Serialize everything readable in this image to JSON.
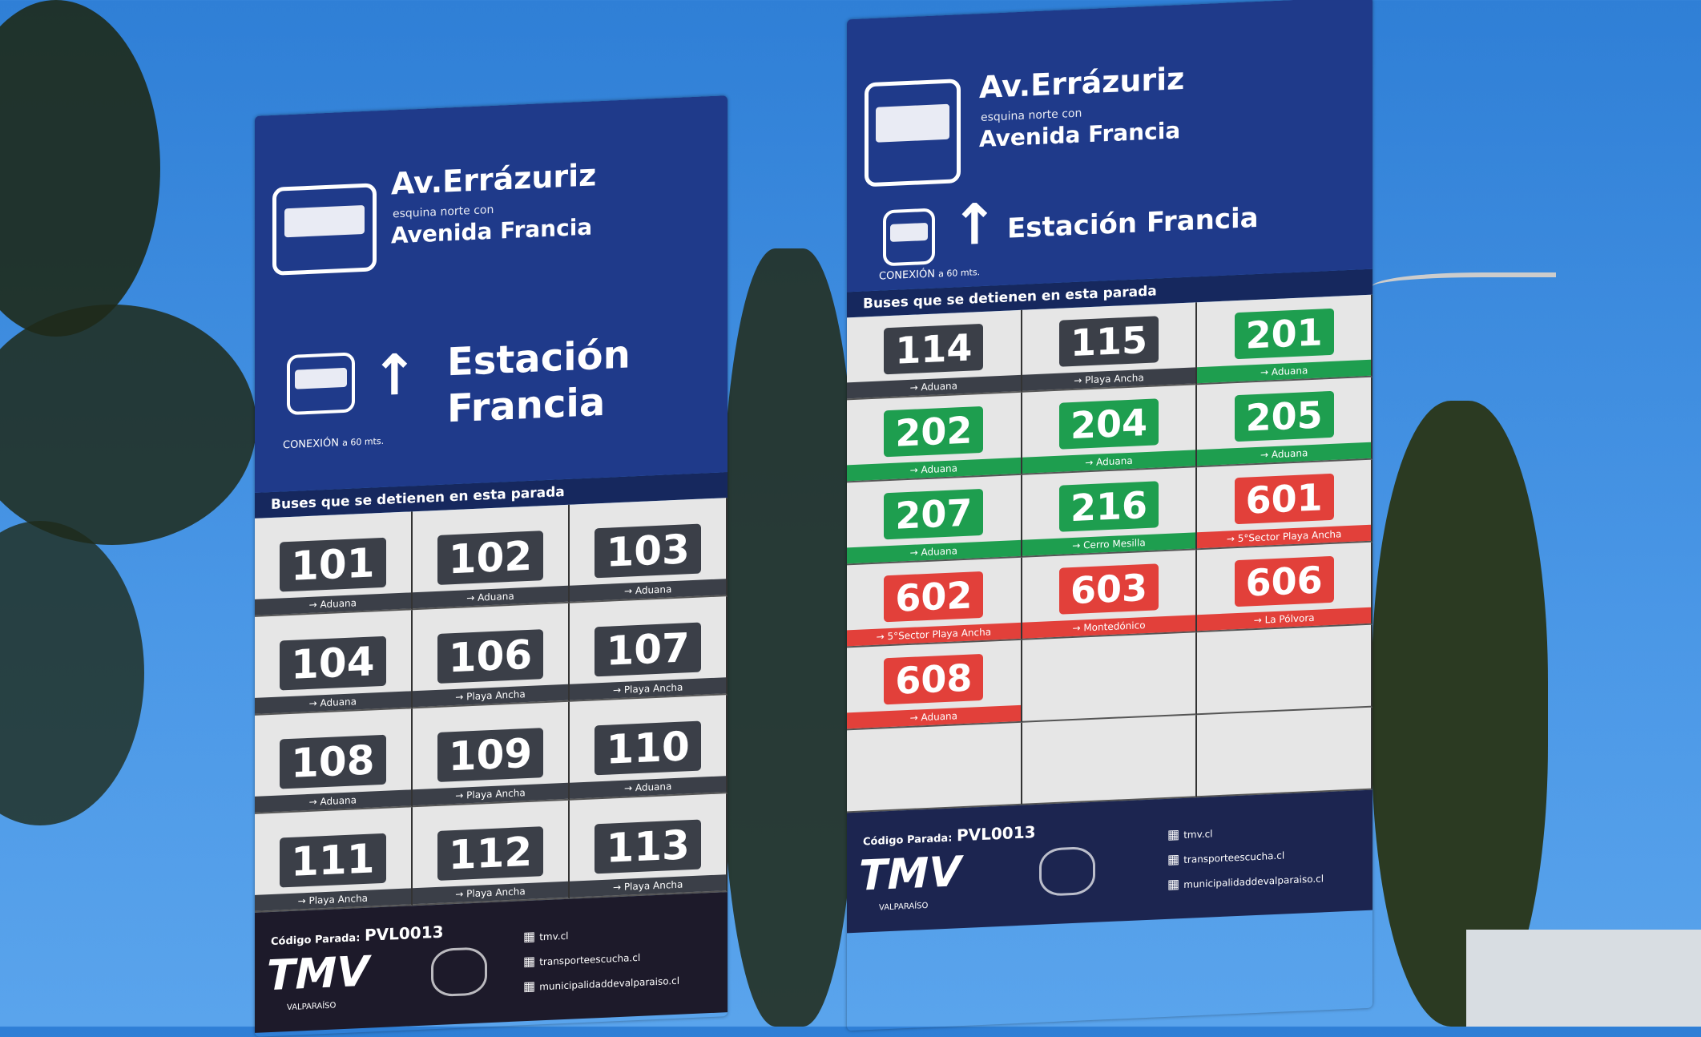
{
  "colors": {
    "sky": "#3b8ae0",
    "sign_blue": "#1f3a8a",
    "gray_route": "#3b3f48",
    "green_route": "#1e9e4f",
    "red_route": "#e2403a"
  },
  "signs": [
    {
      "title": "Av.Errázuriz",
      "subtitle": "esquina norte con",
      "street": "Avenida Francia",
      "connection_label": "CONEXIÓN",
      "distance": "a 60 mts.",
      "station": "Estación Francia",
      "bar_label": "Buses que se detienen en esta parada",
      "stop_code_label": "Código Parada:",
      "stop_code": "PVL0013",
      "logo": "TMV",
      "logo_sub": "VALPARAÍSO",
      "links": [
        "tmv.cl",
        "transporteescucha.cl",
        "municipalidaddevalparaiso.cl"
      ],
      "routes": [
        {
          "number": "101",
          "to": "Aduana",
          "color": "gray"
        },
        {
          "number": "102",
          "to": "Aduana",
          "color": "gray"
        },
        {
          "number": "103",
          "to": "Aduana",
          "color": "gray"
        },
        {
          "number": "104",
          "to": "Aduana",
          "color": "gray"
        },
        {
          "number": "106",
          "to": "Playa Ancha",
          "color": "gray"
        },
        {
          "number": "107",
          "to": "Playa Ancha",
          "color": "gray"
        },
        {
          "number": "108",
          "to": "Aduana",
          "color": "gray"
        },
        {
          "number": "109",
          "to": "Playa Ancha",
          "color": "gray"
        },
        {
          "number": "110",
          "to": "Aduana",
          "color": "gray"
        },
        {
          "number": "111",
          "to": "Playa Ancha",
          "color": "gray"
        },
        {
          "number": "112",
          "to": "Playa Ancha",
          "color": "gray"
        },
        {
          "number": "113",
          "to": "Playa Ancha",
          "color": "gray"
        }
      ]
    },
    {
      "title": "Av.Errázuriz",
      "subtitle": "esquina norte con",
      "street": "Avenida Francia",
      "connection_label": "CONEXIÓN",
      "distance": "a 60 mts.",
      "station": "Estación Francia",
      "bar_label": "Buses que se detienen en esta parada",
      "stop_code_label": "Código Parada:",
      "stop_code": "PVL0013",
      "logo": "TMV",
      "logo_sub": "VALPARAÍSO",
      "links": [
        "tmv.cl",
        "transporteescucha.cl",
        "municipalidaddevalparaiso.cl"
      ],
      "routes": [
        {
          "number": "114",
          "to": "Aduana",
          "color": "gray"
        },
        {
          "number": "115",
          "to": "Playa Ancha",
          "color": "gray"
        },
        {
          "number": "201",
          "to": "Aduana",
          "color": "green"
        },
        {
          "number": "202",
          "to": "Aduana",
          "color": "green"
        },
        {
          "number": "204",
          "to": "Aduana",
          "color": "green"
        },
        {
          "number": "205",
          "to": "Aduana",
          "color": "green"
        },
        {
          "number": "207",
          "to": "Aduana",
          "color": "green"
        },
        {
          "number": "216",
          "to": "Cerro Mesilla",
          "color": "green"
        },
        {
          "number": "601",
          "to": "5°Sector Playa Ancha",
          "color": "red"
        },
        {
          "number": "602",
          "to": "5°Sector Playa Ancha",
          "color": "red"
        },
        {
          "number": "603",
          "to": "Montedónico",
          "color": "red"
        },
        {
          "number": "606",
          "to": "La Pólvora",
          "color": "red"
        },
        {
          "number": "608",
          "to": "Aduana",
          "color": "red"
        }
      ]
    }
  ]
}
